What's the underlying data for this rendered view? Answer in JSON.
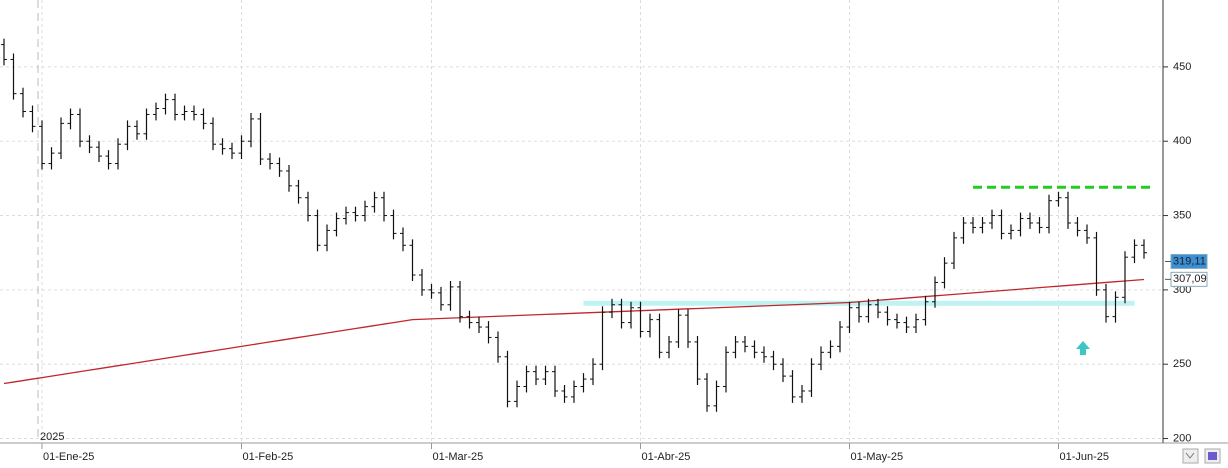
{
  "chart_data": {
    "type": "ohlc",
    "year_label": "2025",
    "categories": [
      null,
      null,
      null,
      null,
      "01-Ene-25",
      null,
      null,
      null,
      null,
      null,
      null,
      null,
      null,
      null,
      null,
      null,
      null,
      null,
      null,
      null,
      null,
      null,
      null,
      null,
      null,
      "01-Feb-25",
      null,
      null,
      null,
      null,
      null,
      null,
      null,
      null,
      null,
      null,
      null,
      null,
      null,
      null,
      null,
      null,
      null,
      null,
      null,
      "01-Mar-25",
      null,
      null,
      null,
      null,
      null,
      null,
      null,
      null,
      null,
      null,
      null,
      null,
      null,
      null,
      null,
      null,
      null,
      null,
      null,
      null,
      null,
      "01-Abr-25",
      null,
      null,
      null,
      null,
      null,
      null,
      null,
      null,
      null,
      null,
      null,
      null,
      null,
      null,
      null,
      null,
      null,
      null,
      null,
      null,
      null,
      "01-May-25",
      null,
      null,
      null,
      null,
      null,
      null,
      null,
      null,
      null,
      null,
      null,
      null,
      null,
      null,
      null,
      null,
      null,
      null,
      null,
      null,
      null,
      "01-Jun-25",
      null,
      null,
      null,
      null,
      null,
      null,
      null,
      null,
      null
    ],
    "open": [
      465,
      455,
      432,
      420,
      410,
      385,
      392,
      412,
      418,
      400,
      396,
      390,
      385,
      398,
      410,
      405,
      418,
      422,
      428,
      418,
      420,
      418,
      412,
      398,
      395,
      392,
      400,
      415,
      388,
      385,
      380,
      370,
      362,
      350,
      330,
      340,
      348,
      352,
      350,
      356,
      362,
      350,
      338,
      330,
      310,
      300,
      298,
      290,
      302,
      282,
      278,
      275,
      268,
      255,
      225,
      235,
      245,
      240,
      245,
      232,
      228,
      235,
      240,
      250,
      285,
      290,
      278,
      288,
      272,
      280,
      258,
      265,
      283,
      265,
      240,
      222,
      235,
      258,
      265,
      262,
      258,
      255,
      250,
      242,
      228,
      232,
      250,
      258,
      262,
      275,
      288,
      282,
      290,
      285,
      280,
      278,
      275,
      280,
      292,
      305,
      318,
      335,
      345,
      342,
      345,
      350,
      338,
      340,
      348,
      345,
      342,
      360,
      362,
      345,
      340,
      335,
      300,
      282,
      295,
      322,
      330
    ],
    "high": [
      469,
      459,
      436,
      424,
      414,
      396,
      416,
      422,
      422,
      404,
      400,
      394,
      402,
      414,
      414,
      422,
      426,
      432,
      432,
      424,
      424,
      422,
      416,
      402,
      399,
      404,
      419,
      419,
      392,
      389,
      384,
      374,
      366,
      354,
      344,
      352,
      356,
      356,
      360,
      366,
      366,
      354,
      342,
      334,
      314,
      304,
      302,
      306,
      306,
      286,
      282,
      279,
      272,
      259,
      239,
      249,
      249,
      249,
      249,
      236,
      239,
      244,
      254,
      289,
      294,
      294,
      292,
      292,
      284,
      284,
      269,
      287,
      287,
      269,
      244,
      239,
      262,
      269,
      269,
      266,
      262,
      259,
      254,
      246,
      236,
      254,
      262,
      266,
      279,
      292,
      292,
      294,
      294,
      289,
      284,
      282,
      284,
      296,
      309,
      322,
      339,
      349,
      349,
      349,
      354,
      354,
      344,
      352,
      352,
      349,
      364,
      366,
      366,
      349,
      344,
      339,
      304,
      299,
      326,
      334,
      334
    ],
    "low": [
      451,
      428,
      416,
      406,
      381,
      381,
      388,
      408,
      396,
      392,
      386,
      381,
      381,
      394,
      401,
      401,
      414,
      418,
      414,
      414,
      414,
      408,
      394,
      391,
      388,
      388,
      396,
      384,
      381,
      376,
      366,
      358,
      346,
      326,
      326,
      336,
      344,
      346,
      346,
      352,
      346,
      334,
      326,
      306,
      296,
      294,
      286,
      286,
      278,
      274,
      271,
      264,
      251,
      221,
      221,
      231,
      236,
      236,
      228,
      224,
      224,
      231,
      236,
      246,
      281,
      274,
      274,
      268,
      268,
      254,
      254,
      261,
      261,
      236,
      218,
      218,
      231,
      254,
      258,
      254,
      251,
      246,
      238,
      224,
      224,
      228,
      246,
      254,
      258,
      271,
      278,
      278,
      281,
      276,
      274,
      271,
      271,
      276,
      288,
      301,
      314,
      331,
      338,
      338,
      341,
      334,
      334,
      336,
      341,
      338,
      338,
      356,
      341,
      336,
      331,
      296,
      278,
      278,
      291,
      318,
      321
    ],
    "close": [
      455,
      432,
      420,
      410,
      385,
      392,
      412,
      418,
      400,
      396,
      390,
      385,
      398,
      410,
      405,
      418,
      422,
      428,
      418,
      420,
      418,
      412,
      398,
      395,
      392,
      400,
      415,
      388,
      385,
      380,
      370,
      362,
      350,
      330,
      340,
      348,
      352,
      350,
      356,
      362,
      350,
      338,
      330,
      310,
      300,
      298,
      290,
      302,
      282,
      278,
      275,
      268,
      255,
      225,
      235,
      245,
      240,
      245,
      232,
      228,
      235,
      240,
      250,
      285,
      290,
      278,
      288,
      272,
      280,
      258,
      265,
      283,
      265,
      240,
      222,
      235,
      258,
      265,
      262,
      258,
      255,
      250,
      242,
      228,
      232,
      250,
      258,
      262,
      275,
      288,
      282,
      290,
      285,
      280,
      278,
      275,
      280,
      292,
      305,
      318,
      335,
      345,
      342,
      345,
      350,
      338,
      340,
      348,
      345,
      342,
      360,
      362,
      345,
      340,
      335,
      300,
      282,
      295,
      322,
      330,
      325
    ],
    "bar_color": "#111111",
    "moving_average": {
      "color": "#c0272d",
      "values": [
        237,
        238,
        239,
        240,
        241,
        242,
        243,
        244,
        245,
        246,
        247,
        248,
        249,
        250,
        251,
        252,
        253,
        254,
        255,
        256,
        257,
        258,
        259,
        260,
        261,
        262,
        263,
        264,
        265,
        266,
        267,
        268,
        269,
        270,
        271,
        272,
        273,
        274,
        275,
        276,
        277,
        278,
        279,
        280,
        280.25,
        280.5,
        280.75,
        281,
        281.25,
        281.5,
        281.75,
        282,
        282.25,
        282.5,
        282.75,
        283,
        283.25,
        283.5,
        283.75,
        284,
        284.25,
        284.5,
        284.75,
        285,
        285.25,
        285.5,
        285.75,
        286,
        286.25,
        286.5,
        286.75,
        287,
        287.25,
        287.5,
        287.75,
        288,
        288.25,
        288.5,
        288.75,
        289,
        289.25,
        289.5,
        289.75,
        290,
        290.25,
        290.5,
        290.75,
        291,
        291.25,
        291.5,
        292,
        292.5,
        293,
        293.5,
        294,
        294.5,
        295,
        295.5,
        296,
        296.5,
        297,
        297.5,
        298,
        298.5,
        299,
        299.5,
        300,
        300.5,
        301,
        301.5,
        302,
        302.5,
        303,
        303.5,
        304,
        304.5,
        305,
        305.5,
        306,
        306.5,
        307
      ]
    },
    "levels": [
      {
        "value": 369,
        "color": "#22cc22"
      },
      {
        "value": 291,
        "color": "#bff3f3"
      }
    ],
    "price_labels": [
      {
        "value": 319.11,
        "label": "319,11",
        "color": "#3a8fd6"
      },
      {
        "value": 307.09,
        "label": "307,09",
        "color": "#ffffff"
      }
    ],
    "ylim": [
      197,
      495
    ],
    "yticks": [
      200,
      250,
      300,
      350,
      400,
      450
    ],
    "grid": true
  }
}
